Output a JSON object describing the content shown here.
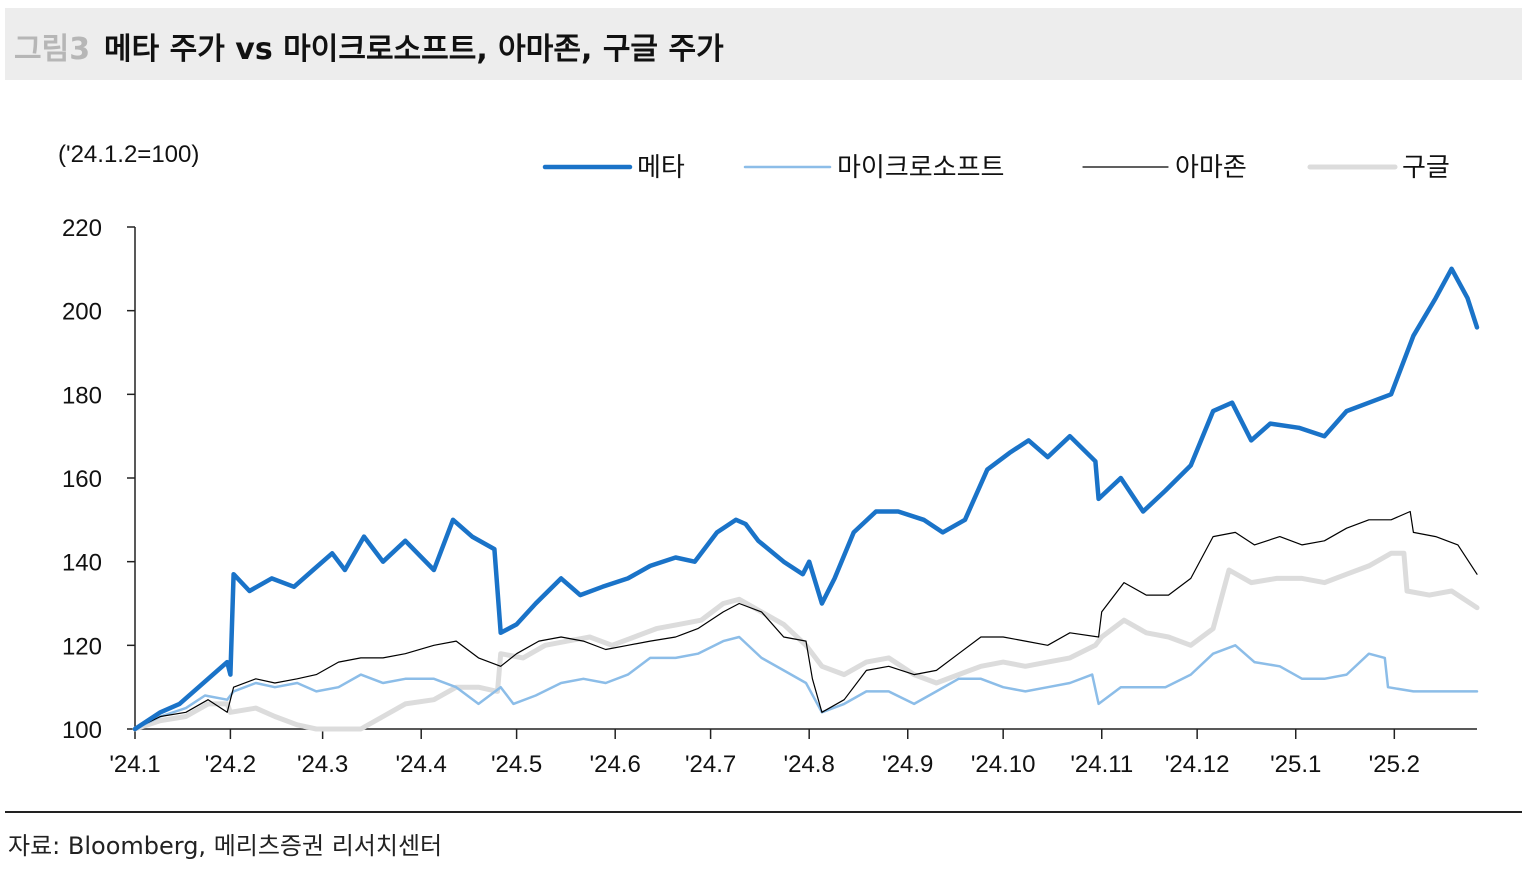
{
  "header": {
    "figure_label": "그림3",
    "title": "메타 주가 vs 마이크로소프트, 아마존, 구글 주가"
  },
  "footer": {
    "source": "자료: Bloomberg, 메리츠증권 리서치센터"
  },
  "chart_data": {
    "type": "line",
    "unit_label": "('24.1.2=100)",
    "ylim": [
      100,
      220
    ],
    "yticks": [
      100,
      120,
      140,
      160,
      180,
      200,
      220
    ],
    "x_tick_labels": [
      "'24.1",
      "'24.2",
      "'24.3",
      "'24.4",
      "'24.5",
      "'24.6",
      "'24.7",
      "'24.8",
      "'24.9",
      "'24.10",
      "'24.11",
      "'24.12",
      "'25.1",
      "'25.2"
    ],
    "x_range": [
      "2024-01-02",
      "2025-02-27"
    ],
    "legend_position": "top-right",
    "grid": false,
    "series": [
      {
        "name": "메타",
        "color": "#1a73c8",
        "width": 4.5,
        "points": [
          [
            "2024-01-02",
            100
          ],
          [
            "2024-01-10",
            104
          ],
          [
            "2024-01-16",
            106
          ],
          [
            "2024-01-22",
            110
          ],
          [
            "2024-01-31",
            116
          ],
          [
            "2024-02-01",
            113
          ],
          [
            "2024-02-02",
            137
          ],
          [
            "2024-02-07",
            133
          ],
          [
            "2024-02-14",
            136
          ],
          [
            "2024-02-21",
            134
          ],
          [
            "2024-02-27",
            138
          ],
          [
            "2024-03-04",
            142
          ],
          [
            "2024-03-08",
            138
          ],
          [
            "2024-03-14",
            146
          ],
          [
            "2024-03-20",
            140
          ],
          [
            "2024-03-27",
            145
          ],
          [
            "2024-04-05",
            138
          ],
          [
            "2024-04-11",
            150
          ],
          [
            "2024-04-17",
            146
          ],
          [
            "2024-04-24",
            143
          ],
          [
            "2024-04-26",
            123
          ],
          [
            "2024-05-01",
            125
          ],
          [
            "2024-05-07",
            130
          ],
          [
            "2024-05-15",
            136
          ],
          [
            "2024-05-21",
            132
          ],
          [
            "2024-05-28",
            134
          ],
          [
            "2024-06-05",
            136
          ],
          [
            "2024-06-12",
            139
          ],
          [
            "2024-06-20",
            141
          ],
          [
            "2024-06-26",
            140
          ],
          [
            "2024-07-03",
            147
          ],
          [
            "2024-07-09",
            150
          ],
          [
            "2024-07-12",
            149
          ],
          [
            "2024-07-16",
            145
          ],
          [
            "2024-07-24",
            140
          ],
          [
            "2024-07-30",
            137
          ],
          [
            "2024-08-01",
            140
          ],
          [
            "2024-08-05",
            130
          ],
          [
            "2024-08-09",
            136
          ],
          [
            "2024-08-15",
            147
          ],
          [
            "2024-08-22",
            152
          ],
          [
            "2024-08-29",
            152
          ],
          [
            "2024-09-06",
            150
          ],
          [
            "2024-09-12",
            147
          ],
          [
            "2024-09-19",
            150
          ],
          [
            "2024-09-26",
            162
          ],
          [
            "2024-10-03",
            166
          ],
          [
            "2024-10-09",
            169
          ],
          [
            "2024-10-15",
            165
          ],
          [
            "2024-10-22",
            170
          ],
          [
            "2024-10-30",
            164
          ],
          [
            "2024-10-31",
            155
          ],
          [
            "2024-11-07",
            160
          ],
          [
            "2024-11-14",
            152
          ],
          [
            "2024-11-21",
            157
          ],
          [
            "2024-11-29",
            163
          ],
          [
            "2024-12-06",
            176
          ],
          [
            "2024-12-12",
            178
          ],
          [
            "2024-12-18",
            169
          ],
          [
            "2024-12-24",
            173
          ],
          [
            "2025-01-02",
            172
          ],
          [
            "2025-01-10",
            170
          ],
          [
            "2025-01-17",
            176
          ],
          [
            "2025-01-24",
            178
          ],
          [
            "2025-01-31",
            180
          ],
          [
            "2025-02-07",
            194
          ],
          [
            "2025-02-14",
            203
          ],
          [
            "2025-02-19",
            210
          ],
          [
            "2025-02-24",
            203
          ],
          [
            "2025-02-27",
            196
          ]
        ]
      },
      {
        "name": "마이크로소프트",
        "color": "#8cbde8",
        "width": 2.5,
        "points": [
          [
            "2024-01-02",
            100
          ],
          [
            "2024-01-10",
            103
          ],
          [
            "2024-01-18",
            105
          ],
          [
            "2024-01-24",
            108
          ],
          [
            "2024-01-31",
            107
          ],
          [
            "2024-02-02",
            109
          ],
          [
            "2024-02-09",
            111
          ],
          [
            "2024-02-15",
            110
          ],
          [
            "2024-02-22",
            111
          ],
          [
            "2024-02-28",
            109
          ],
          [
            "2024-03-06",
            110
          ],
          [
            "2024-03-13",
            113
          ],
          [
            "2024-03-20",
            111
          ],
          [
            "2024-03-27",
            112
          ],
          [
            "2024-04-05",
            112
          ],
          [
            "2024-04-12",
            110
          ],
          [
            "2024-04-19",
            106
          ],
          [
            "2024-04-26",
            110
          ],
          [
            "2024-04-30",
            106
          ],
          [
            "2024-05-07",
            108
          ],
          [
            "2024-05-15",
            111
          ],
          [
            "2024-05-22",
            112
          ],
          [
            "2024-05-29",
            111
          ],
          [
            "2024-06-05",
            113
          ],
          [
            "2024-06-12",
            117
          ],
          [
            "2024-06-20",
            117
          ],
          [
            "2024-06-27",
            118
          ],
          [
            "2024-07-05",
            121
          ],
          [
            "2024-07-10",
            122
          ],
          [
            "2024-07-17",
            117
          ],
          [
            "2024-07-24",
            114
          ],
          [
            "2024-07-31",
            111
          ],
          [
            "2024-08-05",
            104
          ],
          [
            "2024-08-12",
            106
          ],
          [
            "2024-08-19",
            109
          ],
          [
            "2024-08-26",
            109
          ],
          [
            "2024-09-03",
            106
          ],
          [
            "2024-09-10",
            109
          ],
          [
            "2024-09-17",
            112
          ],
          [
            "2024-09-24",
            112
          ],
          [
            "2024-10-01",
            110
          ],
          [
            "2024-10-08",
            109
          ],
          [
            "2024-10-15",
            110
          ],
          [
            "2024-10-22",
            111
          ],
          [
            "2024-10-29",
            113
          ],
          [
            "2024-10-31",
            106
          ],
          [
            "2024-11-07",
            110
          ],
          [
            "2024-11-14",
            110
          ],
          [
            "2024-11-21",
            110
          ],
          [
            "2024-11-29",
            113
          ],
          [
            "2024-12-06",
            118
          ],
          [
            "2024-12-13",
            120
          ],
          [
            "2024-12-19",
            116
          ],
          [
            "2024-12-27",
            115
          ],
          [
            "2025-01-03",
            112
          ],
          [
            "2025-01-10",
            112
          ],
          [
            "2025-01-17",
            113
          ],
          [
            "2025-01-24",
            118
          ],
          [
            "2025-01-29",
            117
          ],
          [
            "2025-01-30",
            110
          ],
          [
            "2025-02-07",
            109
          ],
          [
            "2025-02-14",
            109
          ],
          [
            "2025-02-21",
            109
          ],
          [
            "2025-02-27",
            109
          ]
        ]
      },
      {
        "name": "아마존",
        "color": "#000000",
        "width": 1.2,
        "points": [
          [
            "2024-01-02",
            100
          ],
          [
            "2024-01-10",
            103
          ],
          [
            "2024-01-18",
            104
          ],
          [
            "2024-01-25",
            107
          ],
          [
            "2024-01-31",
            104
          ],
          [
            "2024-02-02",
            110
          ],
          [
            "2024-02-09",
            112
          ],
          [
            "2024-02-15",
            111
          ],
          [
            "2024-02-22",
            112
          ],
          [
            "2024-02-28",
            113
          ],
          [
            "2024-03-06",
            116
          ],
          [
            "2024-03-13",
            117
          ],
          [
            "2024-03-20",
            117
          ],
          [
            "2024-03-27",
            118
          ],
          [
            "2024-04-05",
            120
          ],
          [
            "2024-04-12",
            121
          ],
          [
            "2024-04-19",
            117
          ],
          [
            "2024-04-26",
            115
          ],
          [
            "2024-05-01",
            118
          ],
          [
            "2024-05-08",
            121
          ],
          [
            "2024-05-15",
            122
          ],
          [
            "2024-05-22",
            121
          ],
          [
            "2024-05-29",
            119
          ],
          [
            "2024-06-05",
            120
          ],
          [
            "2024-06-12",
            121
          ],
          [
            "2024-06-20",
            122
          ],
          [
            "2024-06-27",
            124
          ],
          [
            "2024-07-05",
            128
          ],
          [
            "2024-07-10",
            130
          ],
          [
            "2024-07-17",
            128
          ],
          [
            "2024-07-24",
            122
          ],
          [
            "2024-07-31",
            121
          ],
          [
            "2024-08-02",
            112
          ],
          [
            "2024-08-05",
            104
          ],
          [
            "2024-08-12",
            107
          ],
          [
            "2024-08-19",
            114
          ],
          [
            "2024-08-26",
            115
          ],
          [
            "2024-09-03",
            113
          ],
          [
            "2024-09-10",
            114
          ],
          [
            "2024-09-17",
            118
          ],
          [
            "2024-09-24",
            122
          ],
          [
            "2024-10-01",
            122
          ],
          [
            "2024-10-08",
            121
          ],
          [
            "2024-10-15",
            120
          ],
          [
            "2024-10-22",
            123
          ],
          [
            "2024-10-31",
            122
          ],
          [
            "2024-11-01",
            128
          ],
          [
            "2024-11-08",
            135
          ],
          [
            "2024-11-15",
            132
          ],
          [
            "2024-11-22",
            132
          ],
          [
            "2024-11-29",
            136
          ],
          [
            "2024-12-06",
            146
          ],
          [
            "2024-12-13",
            147
          ],
          [
            "2024-12-19",
            144
          ],
          [
            "2024-12-27",
            146
          ],
          [
            "2025-01-03",
            144
          ],
          [
            "2025-01-10",
            145
          ],
          [
            "2025-01-17",
            148
          ],
          [
            "2025-01-24",
            150
          ],
          [
            "2025-01-31",
            150
          ],
          [
            "2025-02-06",
            152
          ],
          [
            "2025-02-07",
            147
          ],
          [
            "2025-02-14",
            146
          ],
          [
            "2025-02-21",
            144
          ],
          [
            "2025-02-27",
            137
          ]
        ]
      },
      {
        "name": "구글",
        "color": "#dcdcdc",
        "width": 5,
        "points": [
          [
            "2024-01-02",
            100
          ],
          [
            "2024-01-10",
            102
          ],
          [
            "2024-01-18",
            103
          ],
          [
            "2024-01-25",
            106
          ],
          [
            "2024-01-31",
            106
          ],
          [
            "2024-02-01",
            104
          ],
          [
            "2024-02-09",
            105
          ],
          [
            "2024-02-15",
            103
          ],
          [
            "2024-02-22",
            101
          ],
          [
            "2024-02-28",
            98
          ],
          [
            "2024-03-06",
            98
          ],
          [
            "2024-03-13",
            100
          ],
          [
            "2024-03-20",
            103
          ],
          [
            "2024-03-27",
            106
          ],
          [
            "2024-04-05",
            107
          ],
          [
            "2024-04-12",
            110
          ],
          [
            "2024-04-19",
            110
          ],
          [
            "2024-04-25",
            109
          ],
          [
            "2024-04-26",
            118
          ],
          [
            "2024-05-03",
            117
          ],
          [
            "2024-05-10",
            120
          ],
          [
            "2024-05-17",
            121
          ],
          [
            "2024-05-24",
            122
          ],
          [
            "2024-05-31",
            120
          ],
          [
            "2024-06-07",
            122
          ],
          [
            "2024-06-14",
            124
          ],
          [
            "2024-06-21",
            125
          ],
          [
            "2024-06-28",
            126
          ],
          [
            "2024-07-05",
            130
          ],
          [
            "2024-07-10",
            131
          ],
          [
            "2024-07-17",
            128
          ],
          [
            "2024-07-24",
            125
          ],
          [
            "2024-07-31",
            120
          ],
          [
            "2024-08-05",
            115
          ],
          [
            "2024-08-12",
            113
          ],
          [
            "2024-08-19",
            116
          ],
          [
            "2024-08-26",
            117
          ],
          [
            "2024-09-03",
            113
          ],
          [
            "2024-09-10",
            111
          ],
          [
            "2024-09-17",
            113
          ],
          [
            "2024-09-24",
            115
          ],
          [
            "2024-10-01",
            116
          ],
          [
            "2024-10-08",
            115
          ],
          [
            "2024-10-15",
            116
          ],
          [
            "2024-10-22",
            117
          ],
          [
            "2024-10-30",
            120
          ],
          [
            "2024-11-01",
            122
          ],
          [
            "2024-11-08",
            126
          ],
          [
            "2024-11-15",
            123
          ],
          [
            "2024-11-22",
            122
          ],
          [
            "2024-11-29",
            120
          ],
          [
            "2024-12-06",
            124
          ],
          [
            "2024-12-11",
            138
          ],
          [
            "2024-12-18",
            135
          ],
          [
            "2024-12-26",
            136
          ],
          [
            "2025-01-03",
            136
          ],
          [
            "2025-01-10",
            135
          ],
          [
            "2025-01-17",
            137
          ],
          [
            "2025-01-24",
            139
          ],
          [
            "2025-01-31",
            142
          ],
          [
            "2025-02-04",
            142
          ],
          [
            "2025-02-05",
            133
          ],
          [
            "2025-02-12",
            132
          ],
          [
            "2025-02-19",
            133
          ],
          [
            "2025-02-27",
            129
          ]
        ]
      }
    ]
  }
}
